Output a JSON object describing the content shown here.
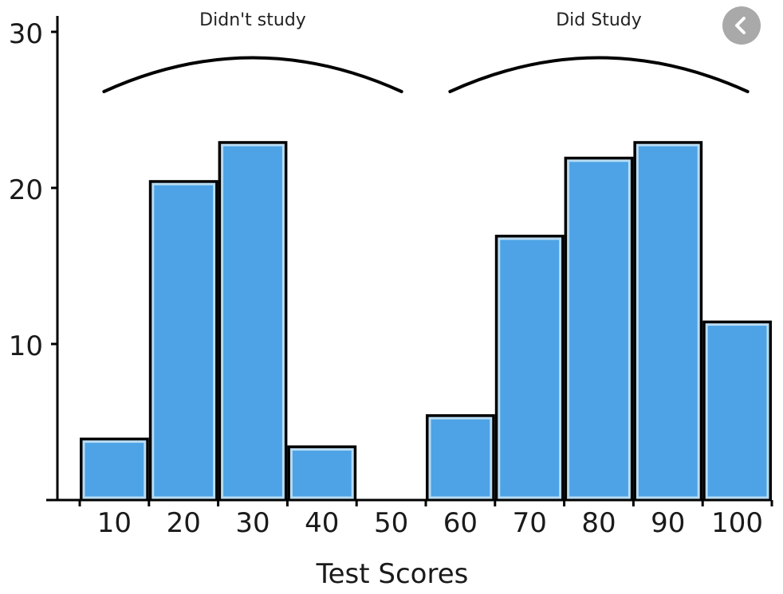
{
  "chart_data": {
    "type": "bar",
    "xlabel": "Test Scores",
    "ylabel": "",
    "categories": [
      "10",
      "20",
      "30",
      "40",
      "50",
      "60",
      "70",
      "80",
      "90",
      "100"
    ],
    "values": [
      4,
      20.5,
      23,
      3.5,
      0,
      5.5,
      17,
      22,
      23,
      11.5
    ],
    "ylim": [
      0,
      30
    ],
    "yticks": [
      10,
      20,
      30
    ],
    "grid": false,
    "annotations": [
      {
        "text": "Didn't study",
        "spans": [
          "10",
          "50"
        ]
      },
      {
        "text": "Did Study",
        "spans": [
          "60",
          "100"
        ]
      }
    ],
    "colors": {
      "bar_fill": "#4da3e6",
      "bar_outline": "#000000",
      "bar_inner_edge": "#b9dcf3"
    }
  },
  "controls": {
    "back_button_icon": "chevron-left-icon"
  }
}
